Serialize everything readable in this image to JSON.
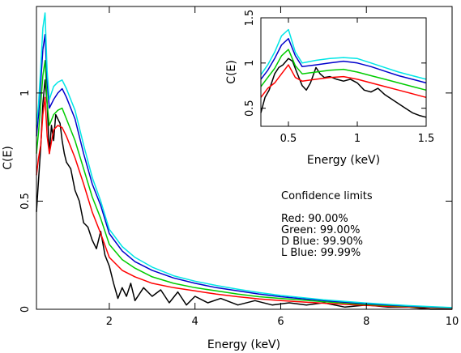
{
  "chart_data": [
    {
      "id": "main",
      "type": "line",
      "xlabel": "Energy (keV)",
      "ylabel": "C(E)",
      "xlim": [
        0.3,
        10
      ],
      "ylim": [
        0,
        1.4
      ],
      "xticks": [
        2,
        4,
        6,
        8,
        10
      ],
      "yticks": [
        0,
        0.5,
        1
      ],
      "xtick_labels": [
        "2",
        "4",
        "6",
        "8",
        "10"
      ],
      "ytick_labels": [
        "0",
        "0.5",
        "1"
      ],
      "annotation_title": "Confidence limits",
      "annotations": [
        "Red: 90.00%",
        "Green: 99.00%",
        "D Blue: 99.90%",
        "L Blue: 99.99%"
      ],
      "series": [
        {
          "key": "black",
          "color": "#000000",
          "x": [
            0.3,
            0.35,
            0.4,
            0.45,
            0.5,
            0.55,
            0.6,
            0.65,
            0.7,
            0.75,
            0.8,
            0.85,
            0.9,
            0.95,
            1.0,
            1.1,
            1.2,
            1.3,
            1.4,
            1.5,
            1.6,
            1.7,
            1.8,
            1.9,
            2.0,
            2.1,
            2.2,
            2.3,
            2.4,
            2.5,
            2.6,
            2.8,
            3.0,
            3.2,
            3.4,
            3.6,
            3.8,
            4.0,
            4.3,
            4.6,
            5.0,
            5.4,
            5.8,
            6.2,
            6.6,
            7.0,
            7.5,
            8.0,
            8.5,
            9.0,
            9.5,
            10.0
          ],
          "y": [
            0.45,
            0.6,
            0.75,
            0.95,
            1.06,
            0.95,
            0.72,
            0.85,
            0.78,
            0.9,
            0.88,
            0.86,
            0.78,
            0.72,
            0.68,
            0.65,
            0.55,
            0.5,
            0.4,
            0.38,
            0.32,
            0.28,
            0.36,
            0.25,
            0.2,
            0.12,
            0.05,
            0.1,
            0.06,
            0.12,
            0.04,
            0.1,
            0.06,
            0.09,
            0.03,
            0.08,
            0.02,
            0.06,
            0.03,
            0.05,
            0.02,
            0.04,
            0.02,
            0.03,
            0.02,
            0.03,
            0.01,
            0.02,
            0.01,
            0.01,
            0.0,
            0.0
          ]
        },
        {
          "key": "red",
          "color": "#ff0000",
          "x": [
            0.3,
            0.35,
            0.4,
            0.45,
            0.5,
            0.55,
            0.6,
            0.7,
            0.8,
            0.9,
            1.0,
            1.2,
            1.4,
            1.6,
            1.8,
            2.0,
            2.3,
            2.6,
            3.0,
            3.5,
            4.0,
            4.5,
            5.0,
            5.5,
            6.0,
            7.0,
            8.0,
            9.0,
            10.0
          ],
          "y": [
            0.62,
            0.7,
            0.76,
            0.9,
            0.98,
            0.8,
            0.72,
            0.83,
            0.85,
            0.84,
            0.8,
            0.7,
            0.58,
            0.45,
            0.35,
            0.24,
            0.18,
            0.15,
            0.12,
            0.1,
            0.085,
            0.07,
            0.058,
            0.048,
            0.04,
            0.028,
            0.018,
            0.01,
            0.005
          ]
        },
        {
          "key": "green",
          "color": "#00cc00",
          "x": [
            0.3,
            0.35,
            0.4,
            0.45,
            0.5,
            0.55,
            0.6,
            0.7,
            0.8,
            0.9,
            1.0,
            1.2,
            1.4,
            1.6,
            1.8,
            2.0,
            2.3,
            2.6,
            3.0,
            3.5,
            4.0,
            4.5,
            5.0,
            5.5,
            6.0,
            7.0,
            8.0,
            9.0,
            10.0
          ],
          "y": [
            0.72,
            0.82,
            0.95,
            1.08,
            1.15,
            0.95,
            0.85,
            0.9,
            0.92,
            0.93,
            0.88,
            0.78,
            0.65,
            0.52,
            0.42,
            0.3,
            0.23,
            0.19,
            0.15,
            0.12,
            0.1,
            0.085,
            0.07,
            0.058,
            0.05,
            0.035,
            0.022,
            0.013,
            0.006
          ]
        },
        {
          "key": "dblue",
          "color": "#0000cc",
          "x": [
            0.3,
            0.35,
            0.4,
            0.45,
            0.5,
            0.55,
            0.6,
            0.7,
            0.8,
            0.9,
            1.0,
            1.2,
            1.4,
            1.6,
            1.8,
            2.0,
            2.3,
            2.6,
            3.0,
            3.5,
            4.0,
            4.5,
            5.0,
            5.5,
            6.0,
            7.0,
            8.0,
            9.0,
            10.0
          ],
          "y": [
            0.8,
            0.9,
            1.05,
            1.2,
            1.27,
            1.05,
            0.93,
            0.97,
            1.0,
            1.02,
            0.98,
            0.88,
            0.72,
            0.58,
            0.48,
            0.35,
            0.27,
            0.22,
            0.18,
            0.145,
            0.12,
            0.1,
            0.085,
            0.07,
            0.058,
            0.04,
            0.026,
            0.015,
            0.007
          ]
        },
        {
          "key": "lblue",
          "color": "#00e6e6",
          "x": [
            0.3,
            0.35,
            0.4,
            0.45,
            0.5,
            0.55,
            0.6,
            0.7,
            0.8,
            0.9,
            1.0,
            1.2,
            1.4,
            1.6,
            1.8,
            2.0,
            2.3,
            2.6,
            3.0,
            3.5,
            4.0,
            4.5,
            5.0,
            5.5,
            6.0,
            7.0,
            8.0,
            9.0,
            10.0
          ],
          "y": [
            0.85,
            0.95,
            1.12,
            1.3,
            1.37,
            1.1,
            0.97,
            1.03,
            1.05,
            1.06,
            1.02,
            0.92,
            0.76,
            0.61,
            0.5,
            0.37,
            0.29,
            0.24,
            0.195,
            0.155,
            0.13,
            0.11,
            0.093,
            0.077,
            0.064,
            0.044,
            0.029,
            0.017,
            0.008
          ]
        }
      ]
    },
    {
      "id": "inset",
      "type": "line",
      "xlabel": "Energy (keV)",
      "ylabel": "C(E)",
      "xlim": [
        0.3,
        1.5
      ],
      "ylim": [
        0.3,
        1.5
      ],
      "xticks": [
        0.5,
        1,
        1.5
      ],
      "yticks": [
        0.5,
        1,
        1.5
      ],
      "xtick_labels": [
        "0.5",
        "1",
        "1.5"
      ],
      "ytick_labels": [
        "0.5",
        "1",
        "1.5"
      ],
      "series": [
        {
          "key": "black",
          "color": "#000000",
          "x": [
            0.3,
            0.33,
            0.36,
            0.4,
            0.43,
            0.46,
            0.5,
            0.53,
            0.56,
            0.6,
            0.63,
            0.66,
            0.7,
            0.73,
            0.76,
            0.8,
            0.85,
            0.9,
            0.95,
            1.0,
            1.05,
            1.1,
            1.15,
            1.2,
            1.25,
            1.3,
            1.35,
            1.4,
            1.45,
            1.5
          ],
          "y": [
            0.45,
            0.62,
            0.7,
            0.88,
            0.95,
            0.98,
            1.05,
            1.02,
            0.9,
            0.75,
            0.7,
            0.78,
            0.95,
            0.88,
            0.84,
            0.85,
            0.82,
            0.8,
            0.82,
            0.78,
            0.7,
            0.68,
            0.72,
            0.65,
            0.6,
            0.55,
            0.5,
            0.45,
            0.42,
            0.4
          ]
        },
        {
          "key": "red",
          "color": "#ff0000",
          "x": [
            0.3,
            0.35,
            0.4,
            0.45,
            0.5,
            0.55,
            0.6,
            0.7,
            0.8,
            0.9,
            1.0,
            1.1,
            1.2,
            1.3,
            1.4,
            1.5
          ],
          "y": [
            0.62,
            0.72,
            0.78,
            0.88,
            0.98,
            0.84,
            0.8,
            0.82,
            0.84,
            0.85,
            0.82,
            0.78,
            0.74,
            0.7,
            0.66,
            0.62
          ]
        },
        {
          "key": "green",
          "color": "#00cc00",
          "x": [
            0.3,
            0.35,
            0.4,
            0.45,
            0.5,
            0.55,
            0.6,
            0.7,
            0.8,
            0.9,
            1.0,
            1.1,
            1.2,
            1.3,
            1.4,
            1.5
          ],
          "y": [
            0.74,
            0.84,
            0.94,
            1.08,
            1.15,
            0.97,
            0.88,
            0.9,
            0.92,
            0.93,
            0.9,
            0.86,
            0.82,
            0.78,
            0.74,
            0.7
          ]
        },
        {
          "key": "dblue",
          "color": "#0000cc",
          "x": [
            0.3,
            0.35,
            0.4,
            0.45,
            0.5,
            0.55,
            0.6,
            0.7,
            0.8,
            0.9,
            1.0,
            1.1,
            1.2,
            1.3,
            1.4,
            1.5
          ],
          "y": [
            0.82,
            0.92,
            1.05,
            1.2,
            1.27,
            1.08,
            0.96,
            0.98,
            1.0,
            1.02,
            1.0,
            0.96,
            0.91,
            0.86,
            0.82,
            0.78
          ]
        },
        {
          "key": "lblue",
          "color": "#00e6e6",
          "x": [
            0.3,
            0.35,
            0.4,
            0.45,
            0.5,
            0.55,
            0.6,
            0.7,
            0.8,
            0.9,
            1.0,
            1.1,
            1.2,
            1.3,
            1.4,
            1.5
          ],
          "y": [
            0.87,
            0.98,
            1.12,
            1.3,
            1.37,
            1.12,
            1.0,
            1.03,
            1.05,
            1.06,
            1.05,
            1.0,
            0.95,
            0.9,
            0.86,
            0.82
          ]
        }
      ]
    }
  ]
}
